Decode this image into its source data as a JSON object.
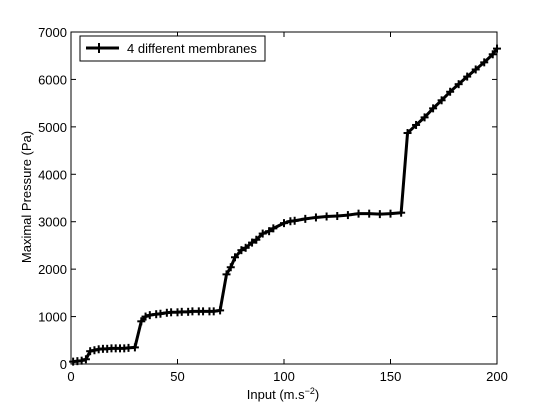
{
  "chart_data": {
    "type": "line",
    "xlabel": "Input (m.s",
    "xlabel_superscript": "−2",
    "xlabel_suffix": ")",
    "ylabel": "Maximal Pressure (Pa)",
    "xlim": [
      0,
      200
    ],
    "ylim": [
      0,
      7000
    ],
    "x_ticks": [
      0,
      50,
      100,
      150,
      200
    ],
    "y_ticks": [
      0,
      1000,
      2000,
      3000,
      4000,
      5000,
      6000,
      7000
    ],
    "grid": false,
    "legend_position": "top-left",
    "series": [
      {
        "name": "4 different membranes",
        "color": "#000000",
        "marker": "plus",
        "x": [
          1,
          3,
          5,
          7,
          9,
          11,
          13,
          15,
          17,
          19,
          21,
          23,
          25,
          27,
          30,
          33,
          35,
          37,
          40,
          42,
          45,
          47,
          50,
          52,
          55,
          57,
          60,
          62,
          65,
          67,
          70,
          73,
          75,
          77,
          80,
          82,
          85,
          87,
          90,
          93,
          95,
          100,
          103,
          105,
          110,
          115,
          120,
          125,
          130,
          135,
          140,
          145,
          150,
          155,
          158,
          162,
          166,
          170,
          174,
          178,
          182,
          186,
          190,
          194,
          198,
          200
        ],
        "y": [
          50,
          60,
          70,
          100,
          270,
          290,
          310,
          320,
          320,
          330,
          330,
          330,
          330,
          340,
          350,
          900,
          1000,
          1030,
          1050,
          1060,
          1080,
          1090,
          1090,
          1100,
          1100,
          1110,
          1110,
          1110,
          1110,
          1110,
          1130,
          1890,
          2040,
          2250,
          2400,
          2450,
          2560,
          2620,
          2750,
          2800,
          2860,
          2970,
          3010,
          3020,
          3060,
          3090,
          3110,
          3120,
          3140,
          3170,
          3170,
          3160,
          3170,
          3190,
          4870,
          5040,
          5200,
          5390,
          5560,
          5740,
          5900,
          6060,
          6210,
          6360,
          6530,
          6650
        ]
      }
    ]
  }
}
